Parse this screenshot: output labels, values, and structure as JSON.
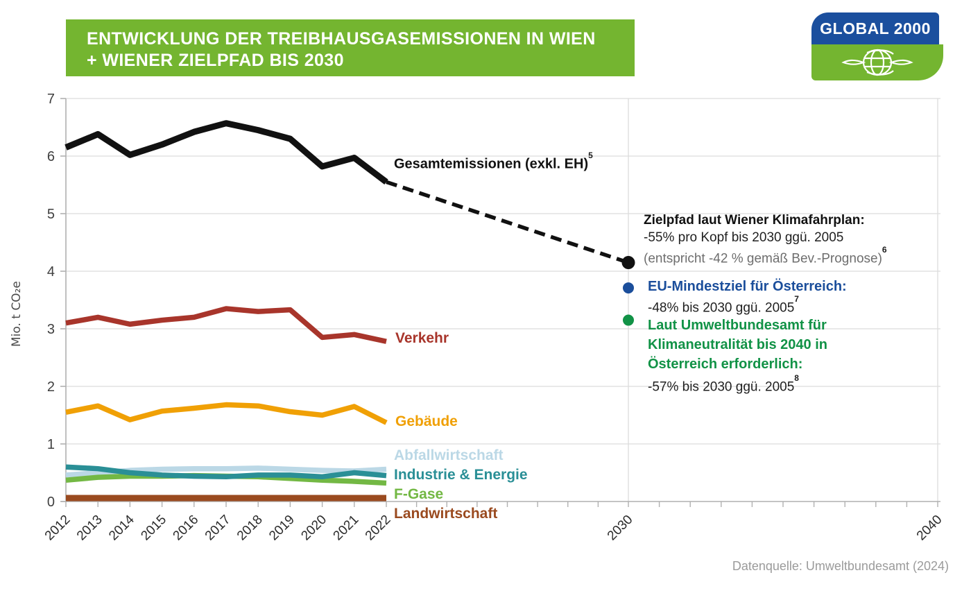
{
  "header": {
    "title_line1": "ENTWICKLUNG DER TREIBHAUSGASEMISSIONEN IN WIEN",
    "title_line2": "+ WIENER ZIELPFAD BIS 2030"
  },
  "logo": {
    "text": "GLOBAL 2000"
  },
  "colors": {
    "banner_green": "#74b530",
    "logo_blue": "#1b4f9e",
    "logo_green": "#74b530",
    "grid": "#dcdcdc",
    "axis": "#b0b0b0",
    "tick_label": "#2b2b2b",
    "text_gray": "#6e6e6e",
    "source_gray": "#9b9b9b",
    "eu_blue": "#1b4e9b",
    "uba_green": "#119246"
  },
  "annotations": {
    "gesamt": {
      "label": "Gesamtemissionen (exkl. EH)",
      "sup": "5"
    },
    "zielpfad": {
      "line1": "Zielpfad laut Wiener Klimafahrplan:",
      "line2": "-55% pro Kopf bis 2030 ggü. 2005",
      "line3": "(entspricht -42 % gemäß Bev.-Prognose)",
      "sup": "6"
    },
    "eu": {
      "line1": "EU-Mindestziel für Österreich:",
      "line2": "-48% bis 2030 ggü. 2005",
      "sup": "7"
    },
    "uba": {
      "line1": "Laut Umweltbundesamt für",
      "line2": "Klimaneutralität bis 2040 in",
      "line3": "Österreich erforderlich:",
      "line4": "-57% bis 2030 ggü. 2005",
      "sup": "8"
    },
    "ylabel": "Mio. t CO₂e",
    "source": "Datenquelle: Umweltbundesamt (2024)"
  },
  "chart_data": {
    "type": "line",
    "title": "Entwicklung der Treibhausgasemissionen in Wien + Wiener Zielpfad bis 2030",
    "ylabel": "Mio. t CO₂e",
    "ylim": [
      0,
      7
    ],
    "yticks": [
      0,
      1,
      2,
      3,
      4,
      5,
      6,
      7
    ],
    "xlim": [
      2012,
      2040
    ],
    "grid": true,
    "x": [
      2012,
      2013,
      2014,
      2015,
      2016,
      2017,
      2018,
      2019,
      2020,
      2021,
      2022
    ],
    "x_labeled_ticks": [
      2012,
      2013,
      2014,
      2015,
      2016,
      2017,
      2018,
      2019,
      2020,
      2021,
      2022,
      2030,
      2040
    ],
    "series": [
      {
        "name": "Gesamtemissionen (exkl. EH)",
        "color": "#111111",
        "values": [
          6.15,
          6.38,
          6.02,
          6.2,
          6.42,
          6.57,
          6.45,
          6.3,
          5.82,
          5.97,
          5.55
        ]
      },
      {
        "name": "Verkehr",
        "color": "#a8352b",
        "values": [
          3.1,
          3.2,
          3.08,
          3.15,
          3.2,
          3.35,
          3.3,
          3.33,
          2.85,
          2.9,
          2.78
        ]
      },
      {
        "name": "Gebäude",
        "color": "#f0a005",
        "values": [
          1.55,
          1.66,
          1.42,
          1.57,
          1.62,
          1.68,
          1.66,
          1.56,
          1.5,
          1.65,
          1.37
        ]
      },
      {
        "name": "Abfallwirtschaft",
        "color": "#bbd8e6",
        "values": [
          0.46,
          0.5,
          0.54,
          0.56,
          0.57,
          0.57,
          0.58,
          0.56,
          0.54,
          0.53,
          0.56
        ]
      },
      {
        "name": "Industrie & Energie",
        "color": "#2a8f96",
        "values": [
          0.6,
          0.57,
          0.5,
          0.46,
          0.44,
          0.43,
          0.46,
          0.46,
          0.43,
          0.5,
          0.45
        ]
      },
      {
        "name": "F-Gase",
        "color": "#73b844",
        "values": [
          0.37,
          0.42,
          0.44,
          0.44,
          0.45,
          0.44,
          0.43,
          0.4,
          0.37,
          0.35,
          0.32
        ]
      },
      {
        "name": "Landwirtschaft",
        "color": "#9a4a1f",
        "values": [
          0.06,
          0.06,
          0.06,
          0.06,
          0.06,
          0.06,
          0.06,
          0.06,
          0.06,
          0.06,
          0.06
        ]
      }
    ],
    "projection": {
      "name": "Wiener Zielpfad",
      "style": "dashed",
      "color": "#111111",
      "from": {
        "year": 2022,
        "value": 5.55
      },
      "to": {
        "year": 2030,
        "value": 4.15
      }
    },
    "target_points": [
      {
        "label": "Zielpfad laut Wiener Klimafahrplan",
        "year": 2030,
        "value": 4.15,
        "color": "#111111"
      },
      {
        "label": "EU-Mindestziel für Österreich",
        "year": 2030,
        "value": 3.71,
        "color": "#1b4e9b"
      },
      {
        "label": "Laut Umweltbundesamt für Klimaneutralität bis 2040 in Österreich erforderlich",
        "year": 2030,
        "value": 3.15,
        "color": "#119246"
      }
    ]
  }
}
